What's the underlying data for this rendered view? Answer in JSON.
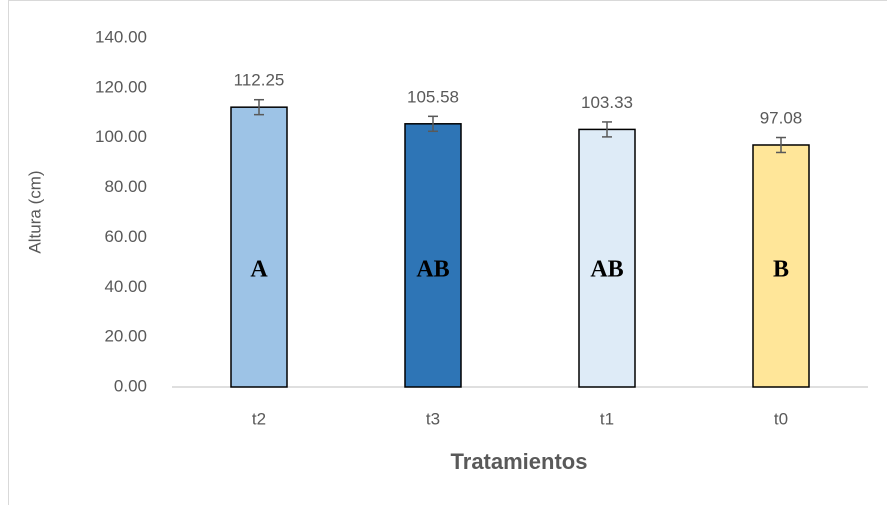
{
  "chart_data": {
    "type": "bar",
    "y_label": "Altura (cm)",
    "x_label": "Tratamientos",
    "categories": [
      "t2",
      "t3",
      "t1",
      "t0"
    ],
    "values": [
      112.25,
      105.58,
      103.33,
      97.08
    ],
    "errors": [
      3,
      3,
      3,
      3
    ],
    "colors": [
      "#9dc3e6",
      "#2e75b6",
      "#deebf7",
      "#ffe699"
    ],
    "letters": [
      "A",
      "AB",
      "AB",
      "B"
    ],
    "ylim": [
      0,
      140
    ],
    "yticks": [
      {
        "value": 0,
        "label": "0.00"
      },
      {
        "value": 20,
        "label": "20.00"
      },
      {
        "value": 40,
        "label": "40.00"
      },
      {
        "value": 60,
        "label": "60.00"
      },
      {
        "value": 80,
        "label": "80.00"
      },
      {
        "value": 100,
        "label": "100.00"
      },
      {
        "value": 120,
        "label": "120.00"
      },
      {
        "value": 140,
        "label": "140.00"
      }
    ],
    "grid": false
  }
}
